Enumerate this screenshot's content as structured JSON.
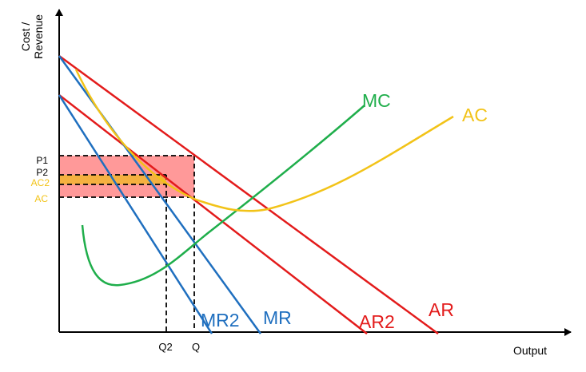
{
  "axes": {
    "y_label_line1": "Cost /",
    "y_label_line2": "Revenue",
    "x_label": "Output"
  },
  "curves": {
    "mc": "MC",
    "ac": "AC",
    "ar": "AR",
    "ar2": "AR2",
    "mr": "MR",
    "mr2": "MR2"
  },
  "price_labels": {
    "p1": "P1",
    "p2": "P2",
    "ac2": "AC2",
    "ac": "AC"
  },
  "quantity_labels": {
    "q2": "Q2",
    "q": "Q"
  },
  "colors": {
    "ar": "#e31b1b",
    "mr": "#1f6fbf",
    "mc": "#1fae4b",
    "ac": "#f2c318",
    "profit_fill": "#ff9999",
    "profit2_fill": "#f5b040",
    "axis": "#000000"
  }
}
